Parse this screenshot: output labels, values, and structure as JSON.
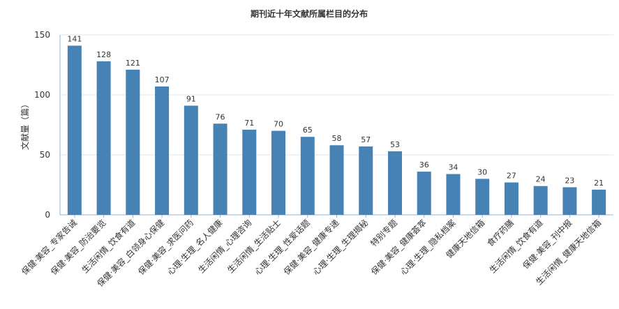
{
  "chart_data": {
    "type": "bar",
    "title": "期刊近十年文献所属栏目的分布",
    "ylabel": "文献量（篇）",
    "ylim": [
      0,
      150
    ],
    "yticks": [
      0,
      50,
      100,
      150
    ],
    "bar_color": "#4682b4",
    "grid": true,
    "categories": [
      "保健·美容_专家告诫",
      "保健·美容_防治要览",
      "生活闲情_饮食有道",
      "保健·美容_白领身心保健",
      "保健·美容_求医问药",
      "心理·生理_名人健康",
      "生活闲情_心理咨询",
      "生活闲情_生活贴士",
      "心理·生理_性爱话题",
      "保健·美容_健康专递",
      "心理·生理_生理揭秘",
      "特别专题",
      "保健·美容_健康荟萃",
      "心理·生理_隐私档案",
      "健康天地信箱",
      "食疗药膳",
      "生活闲情_饮食有道",
      "保健·美容_刊中报",
      "生活闲情_健康天地信箱"
    ],
    "values": [
      141,
      128,
      121,
      107,
      91,
      76,
      71,
      70,
      65,
      58,
      57,
      53,
      36,
      34,
      30,
      27,
      24,
      23,
      21
    ]
  }
}
